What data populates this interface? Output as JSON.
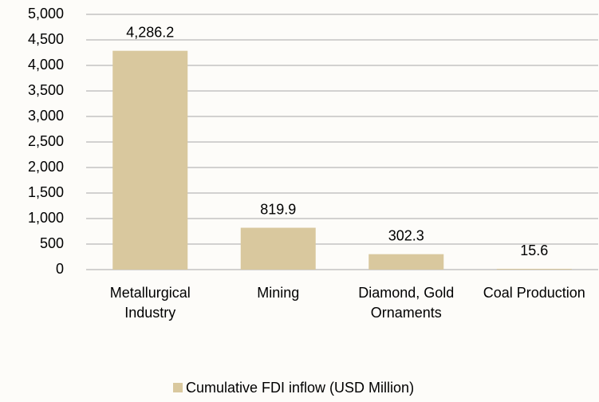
{
  "chart_data": {
    "type": "bar",
    "categories": [
      "Metallurgical Industry",
      "Mining",
      "Diamond, Gold Ornaments",
      "Coal Production"
    ],
    "series": [
      {
        "name": "Cumulative FDI inflow (USD Million)",
        "color": "#d9c89e",
        "values": [
          4286.2,
          819.9,
          302.3,
          15.6
        ],
        "value_labels": [
          "4,286.2",
          "819.9",
          "302.3",
          "15.6"
        ]
      }
    ],
    "ylim": [
      0,
      5000
    ],
    "yticks": [
      0,
      500,
      {
        "value": 1000,
        "label": "1,000"
      },
      {
        "value": 1500,
        "label": "1,500"
      },
      {
        "value": 2000,
        "label": "2,000"
      },
      {
        "value": 2500,
        "label": "2,500"
      },
      {
        "value": 3000,
        "label": "3,000"
      },
      {
        "value": 3500,
        "label": "3,500"
      },
      {
        "value": 4000,
        "label": "4,000"
      },
      {
        "value": 4500,
        "label": "4,500"
      },
      {
        "value": 5000,
        "label": "5,000"
      }
    ],
    "grid": true,
    "legend": "bottom"
  }
}
